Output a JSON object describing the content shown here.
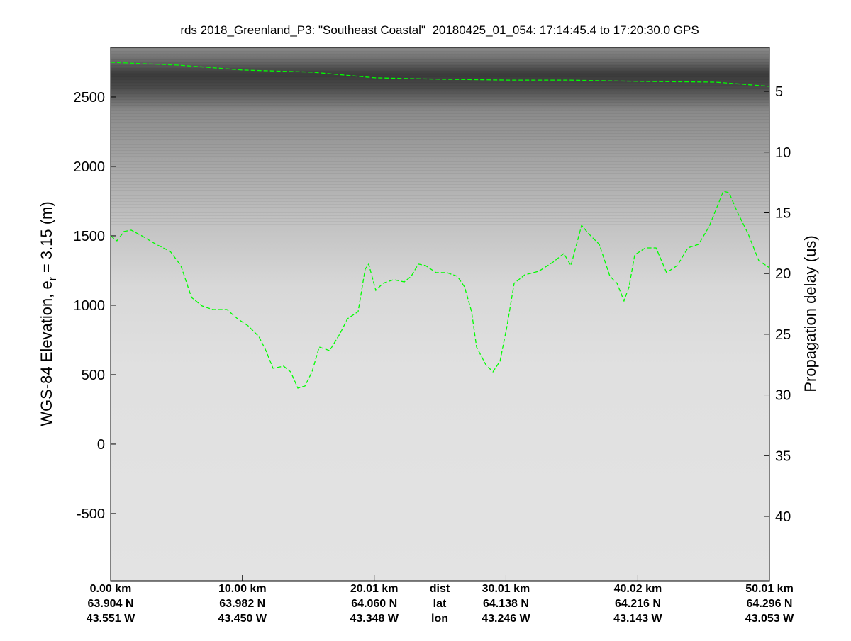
{
  "chart_data": {
    "type": "line",
    "title": "rds 2018_Greenland_P3: \"Southeast Coastal\"  20180425_01_054: 17:14:45.4 to 17:20:30.0 GPS",
    "ylabel": "WGS-84 Elevation, e",
    "ylabel_sub": "r",
    "ylabel_tail": " = 3.15 (m)",
    "y2label": "Propagation delay (us)",
    "xlim": [
      0,
      50.01
    ],
    "xticks": [
      {
        "value": 0,
        "label": "0.00 km"
      },
      {
        "value": 10.0,
        "label": "10.00 km"
      },
      {
        "value": 20.01,
        "label": "20.01 km"
      },
      {
        "value": 30.01,
        "label": "30.01 km"
      },
      {
        "value": 40.02,
        "label": "40.02 km"
      },
      {
        "value": 50.01,
        "label": "50.01 km"
      }
    ],
    "xtick_lat": [
      "63.904 N",
      "63.982 N",
      "64.060 N",
      "64.138 N",
      "64.216 N",
      "64.296 N"
    ],
    "xtick_lon": [
      "43.551 W",
      "43.450 W",
      "43.348 W",
      "43.246 W",
      "43.143 W",
      "43.053 W"
    ],
    "xtick_rows": [
      "dist",
      "lat",
      "lon"
    ],
    "ylim": [
      -985,
      2857
    ],
    "yticks": [
      -500,
      0,
      500,
      1000,
      1500,
      2000,
      2500
    ],
    "y2lim": [
      45.31,
      1.38
    ],
    "y2ticks": [
      5,
      10,
      15,
      20,
      25,
      30,
      35,
      40
    ],
    "series": [
      {
        "color": "#00ff00",
        "x": [
          0,
          5.06,
          10.06,
          15.29,
          20.08,
          24.98,
          30.14,
          34.67,
          40.59,
          45.92,
          50.01
        ],
        "values": [
          2750,
          2730,
          2694,
          2679,
          2638,
          2628,
          2622,
          2622,
          2612,
          2607,
          2577
        ]
      },
      {
        "color": "#00ff00",
        "x": [
          0,
          0.48,
          1.02,
          1.56,
          2.37,
          3.45,
          4.52,
          5.33,
          6.14,
          6.94,
          7.75,
          8.83,
          9.63,
          10.44,
          11.25,
          11.79,
          12.33,
          13.13,
          13.67,
          14.21,
          14.75,
          15.29,
          15.83,
          16.63,
          17.44,
          17.98,
          18.79,
          19.32,
          19.59,
          20.13,
          20.67,
          21.48,
          22.29,
          22.82,
          23.36,
          23.9,
          24.71,
          25.51,
          26.32,
          26.86,
          27.4,
          27.78,
          28.48,
          29.02,
          29.56,
          30.09,
          30.63,
          31.44,
          32.51,
          33.59,
          34.4,
          34.94,
          35.75,
          36.29,
          37.09,
          37.9,
          38.44,
          38.97,
          39.35,
          39.78,
          40.59,
          41.4,
          42.2,
          43.01,
          43.82,
          44.63,
          45.43,
          45.97,
          46.51,
          46.94,
          47.59,
          48.39,
          49.2,
          50.01
        ],
        "values": [
          1500,
          1464,
          1531,
          1541,
          1500,
          1439,
          1388,
          1286,
          1056,
          995,
          969,
          969,
          903,
          852,
          775,
          673,
          546,
          561,
          520,
          403,
          418,
          520,
          699,
          673,
          801,
          903,
          954,
          1260,
          1296,
          1107,
          1158,
          1184,
          1168,
          1209,
          1296,
          1286,
          1235,
          1235,
          1209,
          1133,
          954,
          699,
          571,
          520,
          597,
          852,
          1158,
          1219,
          1245,
          1311,
          1372,
          1286,
          1576,
          1515,
          1439,
          1209,
          1158,
          1031,
          1133,
          1362,
          1413,
          1413,
          1235,
          1286,
          1413,
          1439,
          1566,
          1694,
          1821,
          1811,
          1668,
          1515,
          1321,
          1270
        ]
      }
    ]
  }
}
